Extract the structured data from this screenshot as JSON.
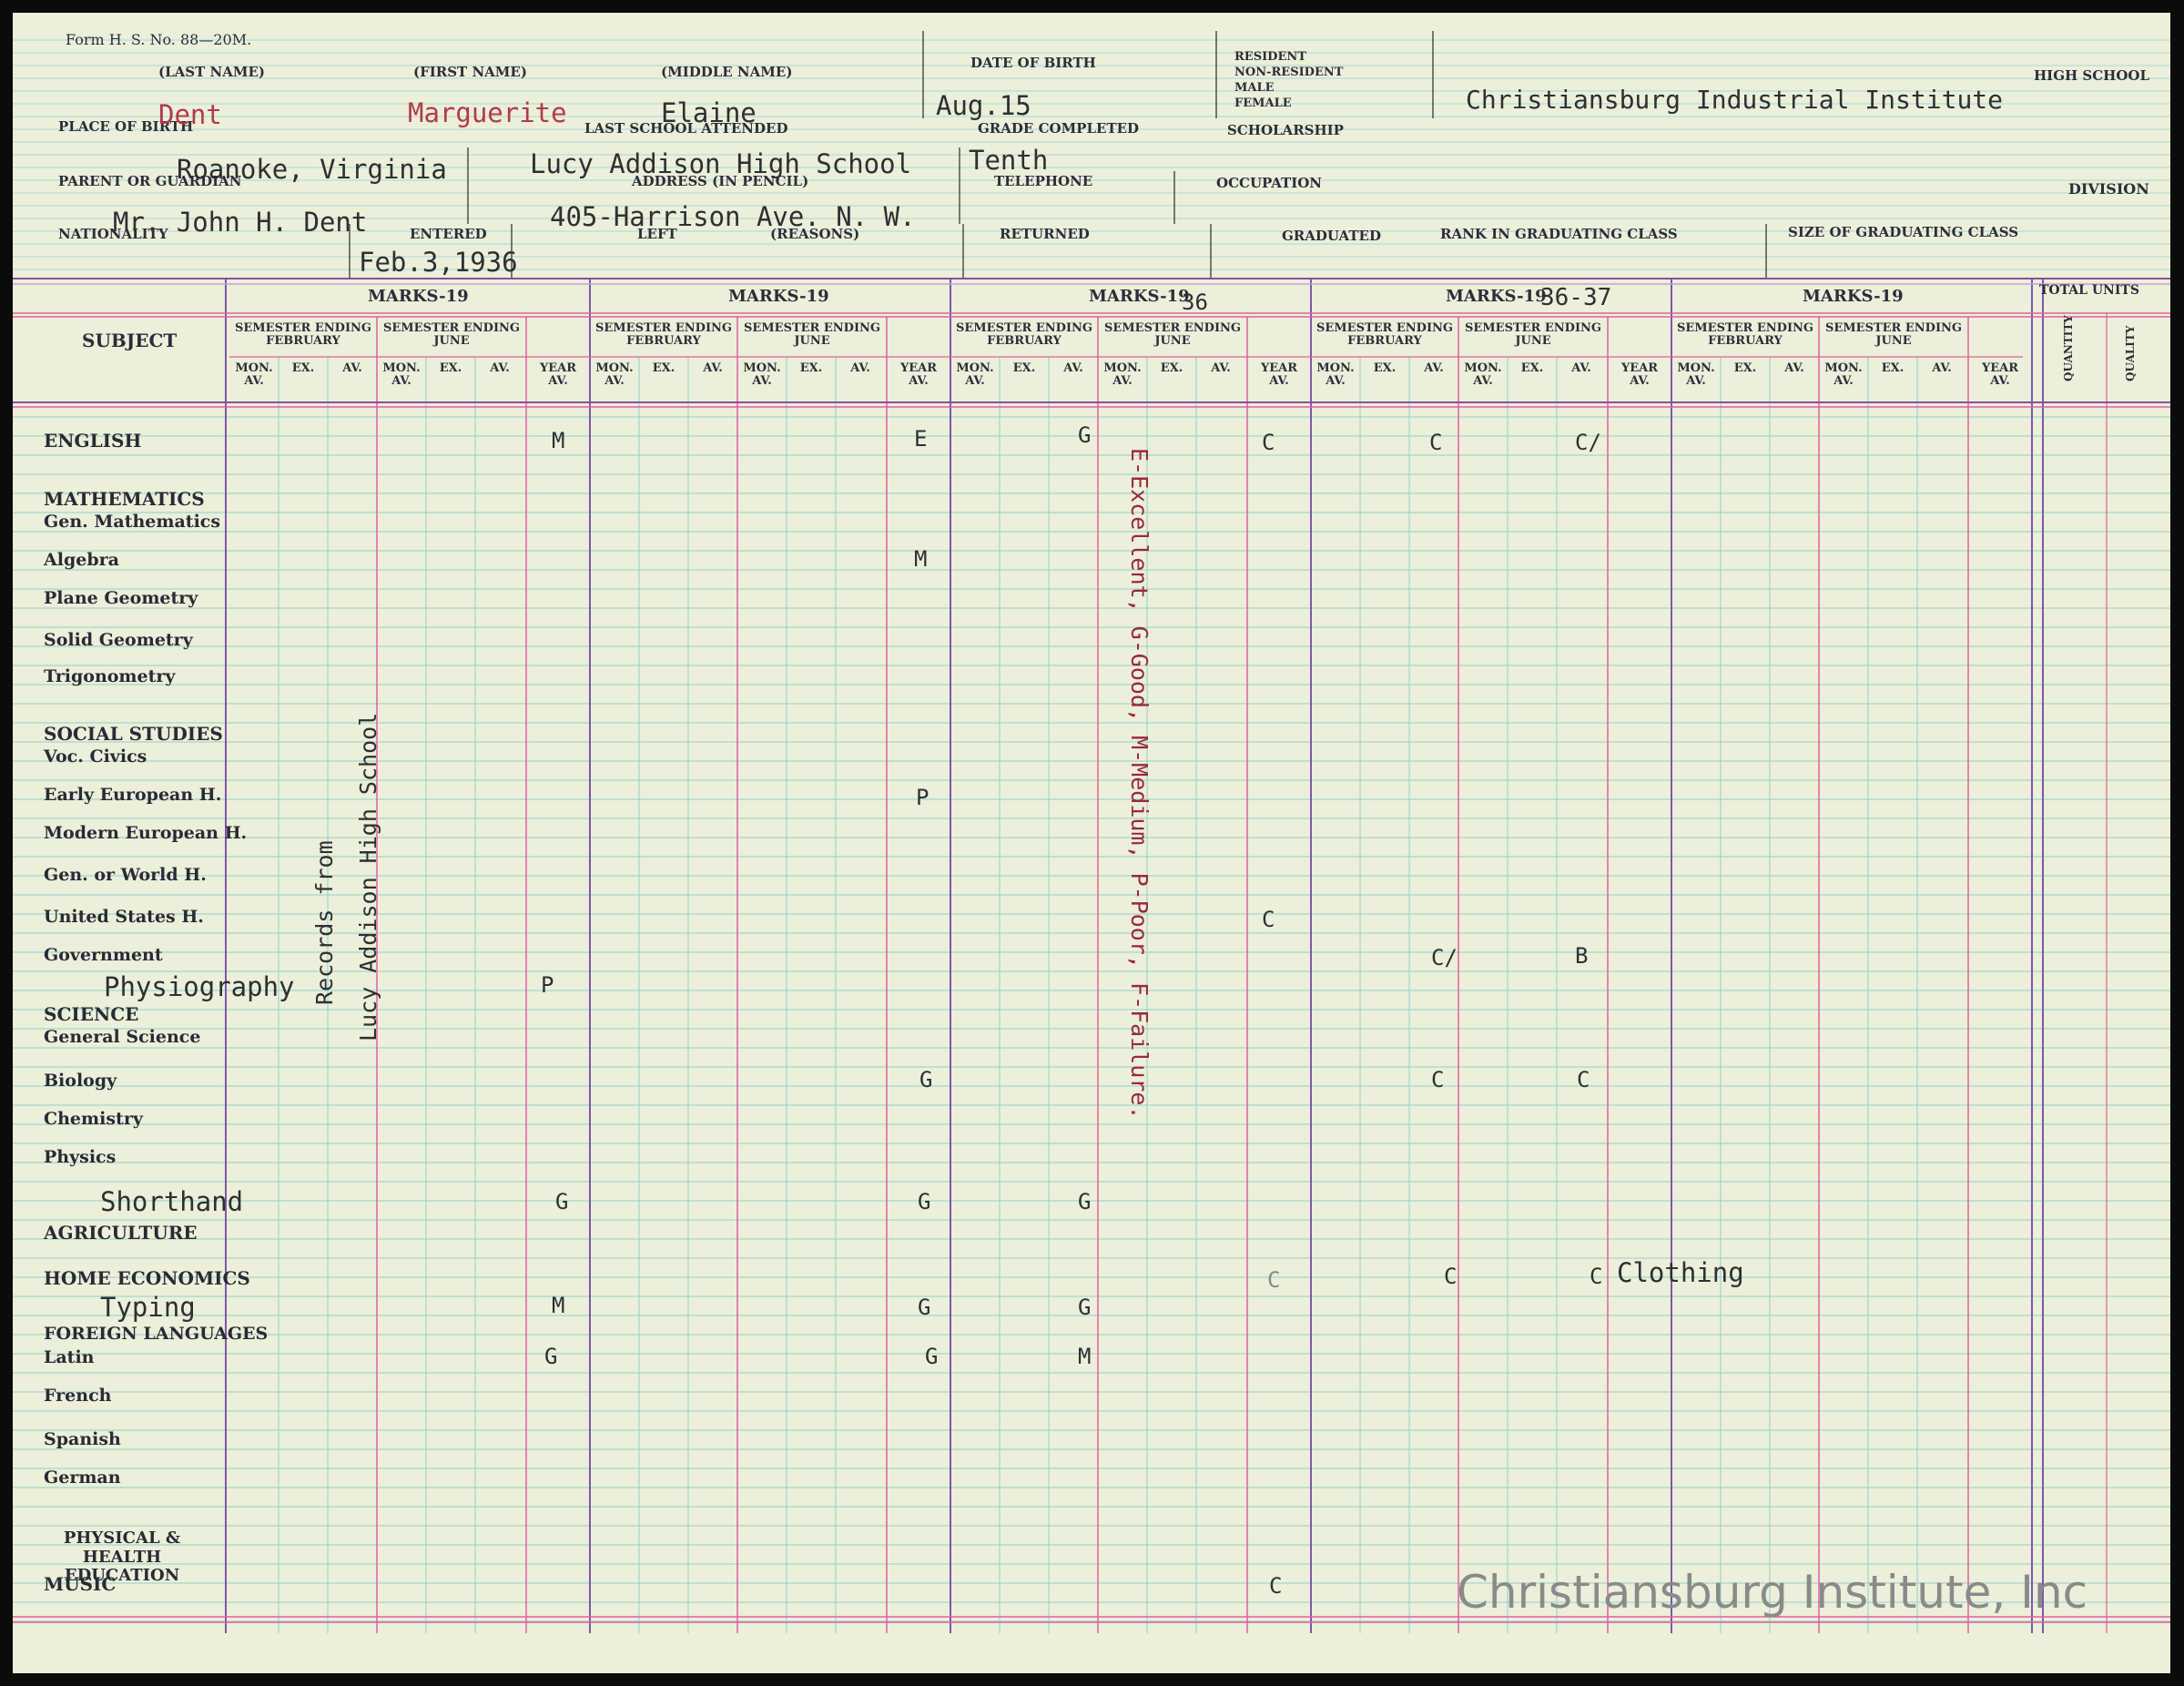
{
  "form_number": "Form H. S. No. 88—20M.",
  "header_labels": {
    "last_name": "(LAST NAME)",
    "first_name": "(FIRST NAME)",
    "middle_name": "(MIDDLE NAME)",
    "date_of_birth": "DATE OF BIRTH",
    "resident": "RESIDENT",
    "non_resident": "NON-RESIDENT",
    "male": "MALE",
    "female": "FEMALE",
    "high_school": "HIGH SCHOOL",
    "place_of_birth": "PLACE OF BIRTH",
    "last_school_attended": "LAST SCHOOL ATTENDED",
    "grade_completed": "GRADE COMPLETED",
    "scholarship": "SCHOLARSHIP",
    "parent_or_guardian": "PARENT OR GUARDIAN",
    "address": "ADDRESS (IN PENCIL)",
    "telephone": "TELEPHONE",
    "occupation": "OCCUPATION",
    "division": "DIVISION",
    "nationality": "NATIONALITY",
    "entered": "ENTERED",
    "left": "LEFT",
    "reasons": "(REASONS)",
    "returned": "RETURNED",
    "graduated": "GRADUATED",
    "rank": "RANK IN GRADUATING CLASS",
    "size": "SIZE OF GRADUATING CLASS"
  },
  "student": {
    "last_name": "Dent",
    "first_name": "Marguerite",
    "middle_name": "Elaine",
    "date_of_birth": "Aug.15",
    "school": "Christiansburg Industrial Institute",
    "place_of_birth": "Roanoke, Virginia",
    "last_school_attended": "Lucy Addison High School",
    "grade_completed": "Tenth",
    "parent": "Mr. John H. Dent",
    "address": "405-Harrison Ave. N. W.",
    "entered": "Feb.3,1936"
  },
  "grid_headers": {
    "subject": "SUBJECT",
    "marks_19": "MARKS-19",
    "marks_1936": "MARKS-19",
    "marks_1936_suffix": "36",
    "marks_1936_37": "MARKS-19",
    "marks_1936_37_suffix": "36-37",
    "total_units": "TOTAL UNITS",
    "quantity": "QUANTITY",
    "quality": "QUALITY",
    "sem_feb": "SEMESTER ENDING FEBRUARY",
    "sem_june": "SEMESTER ENDING JUNE",
    "mon_av": "MON. AV.",
    "ex": "EX.",
    "av": "AV.",
    "year_av": "YEAR AV."
  },
  "subjects": {
    "english": "ENGLISH",
    "mathematics": "MATHEMATICS",
    "gen_math": "Gen. Mathematics",
    "algebra": "Algebra",
    "plane_geometry": "Plane Geometry",
    "solid_geometry": "Solid Geometry",
    "trigonometry": "Trigonometry",
    "social_studies": "SOCIAL STUDIES",
    "voc_civics": "Voc. Civics",
    "early_european": "Early European H.",
    "modern_european": "Modern European H.",
    "world_history": "Gen. or World H.",
    "us_history": "United States H.",
    "government": "Government",
    "science": "SCIENCE",
    "general_science": "General Science",
    "biology": "Biology",
    "chemistry": "Chemistry",
    "physics": "Physics",
    "agriculture": "AGRICULTURE",
    "home_economics": "HOME ECONOMICS",
    "foreign_languages": "FOREIGN LANGUAGES",
    "latin": "Latin",
    "french": "French",
    "spanish": "Spanish",
    "german": "German",
    "phys_ed": "PHYSICAL & HEALTH EDUCATION",
    "music": "MUSIC"
  },
  "typed_subjects": {
    "physiography": "Physiography",
    "shorthand": "Shorthand",
    "typing": "Typing",
    "clothing": "Clothing"
  },
  "side_notes": {
    "records_from": "Records from",
    "lucy_addison": "Lucy Addison High School",
    "legend": "E-Excellent, G-Good, M-Medium, P-Poor, F-Failure."
  },
  "marks": {
    "english": [
      "M",
      "E",
      "G",
      "C",
      "C",
      "C/"
    ],
    "algebra": [
      "M"
    ],
    "early_european": [
      "P"
    ],
    "us_history": [
      "C"
    ],
    "government": [
      "C/",
      "B"
    ],
    "physiography": [
      "P"
    ],
    "biology": [
      "G",
      "C",
      "C"
    ],
    "shorthand": [
      "G",
      "G",
      "G"
    ],
    "home_economics": [
      "C",
      "C",
      "C"
    ],
    "typing": [
      "M",
      "G",
      "G"
    ],
    "latin": [
      "G",
      "G",
      "M"
    ],
    "music": [
      "C"
    ]
  },
  "watermark": "Christiansburg Institute, Inc"
}
